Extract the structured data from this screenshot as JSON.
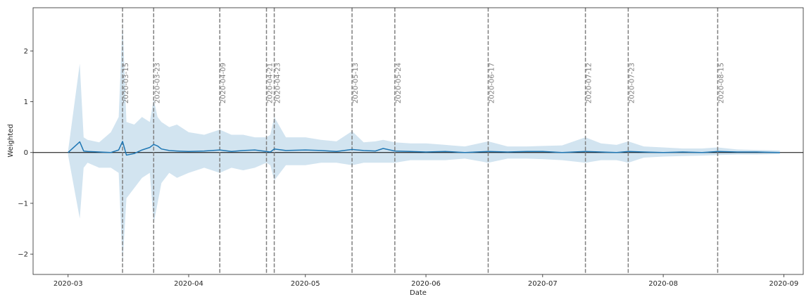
{
  "chart_data": {
    "type": "line",
    "xlabel": "Date",
    "ylabel": "Weighted",
    "x_type": "date",
    "xlim": [
      "2020-02-21",
      "2020-09-06"
    ],
    "ylim": [
      -2.4,
      2.85
    ],
    "x_ticks": [
      "2020-03-01",
      "2020-04-01",
      "2020-05-01",
      "2020-06-01",
      "2020-07-01",
      "2020-08-01",
      "2020-09-01"
    ],
    "x_tick_labels": [
      "2020-03",
      "2020-04",
      "2020-05",
      "2020-06",
      "2020-07",
      "2020-08",
      "2020-09"
    ],
    "y_ticks": [
      -2,
      -1,
      0,
      1,
      2
    ],
    "y_tick_labels": [
      "−2",
      "−1",
      "0",
      "1",
      "2"
    ],
    "grid": false,
    "reference_line_y": 0,
    "event_lines": [
      {
        "date": "2020-03-15",
        "label": "2020-03-15"
      },
      {
        "date": "2020-03-23",
        "label": "2020-03-23"
      },
      {
        "date": "2020-04-09",
        "label": "2020-04-09"
      },
      {
        "date": "2020-04-21",
        "label": "2020-04-21"
      },
      {
        "date": "2020-04-23",
        "label": "2020-04-23"
      },
      {
        "date": "2020-05-13",
        "label": "2020-05-13"
      },
      {
        "date": "2020-05-24",
        "label": "2020-05-24"
      },
      {
        "date": "2020-06-17",
        "label": "2020-06-17"
      },
      {
        "date": "2020-07-12",
        "label": "2020-07-12"
      },
      {
        "date": "2020-07-23",
        "label": "2020-07-23"
      },
      {
        "date": "2020-08-15",
        "label": "2020-08-15"
      }
    ],
    "series": [
      {
        "x": [
          "2020-03-01",
          "2020-03-04",
          "2020-03-05",
          "2020-03-06",
          "2020-03-09",
          "2020-03-12",
          "2020-03-14",
          "2020-03-15",
          "2020-03-16",
          "2020-03-18",
          "2020-03-20",
          "2020-03-22",
          "2020-03-23",
          "2020-03-24",
          "2020-03-25",
          "2020-03-27",
          "2020-03-29",
          "2020-04-01",
          "2020-04-05",
          "2020-04-09",
          "2020-04-12",
          "2020-04-15",
          "2020-04-18",
          "2020-04-21",
          "2020-04-22",
          "2020-04-23",
          "2020-04-26",
          "2020-05-01",
          "2020-05-05",
          "2020-05-09",
          "2020-05-13",
          "2020-05-16",
          "2020-05-19",
          "2020-05-21",
          "2020-05-24",
          "2020-05-28",
          "2020-06-01",
          "2020-06-06",
          "2020-06-11",
          "2020-06-17",
          "2020-06-22",
          "2020-06-27",
          "2020-07-01",
          "2020-07-06",
          "2020-07-12",
          "2020-07-16",
          "2020-07-20",
          "2020-07-23",
          "2020-07-27",
          "2020-08-01",
          "2020-08-06",
          "2020-08-11",
          "2020-08-15",
          "2020-08-20",
          "2020-08-25",
          "2020-08-31"
        ],
        "y": [
          0.0,
          0.21,
          0.03,
          0.02,
          0.01,
          0.0,
          0.05,
          0.22,
          -0.05,
          -0.02,
          0.05,
          0.1,
          0.16,
          0.13,
          0.07,
          0.04,
          0.03,
          0.02,
          0.03,
          0.05,
          0.02,
          0.04,
          0.05,
          0.02,
          0.01,
          0.07,
          0.04,
          0.05,
          0.04,
          0.02,
          0.06,
          0.04,
          0.03,
          0.08,
          0.03,
          0.02,
          0.01,
          0.02,
          0.0,
          0.02,
          0.01,
          0.02,
          0.02,
          0.0,
          0.02,
          0.01,
          0.0,
          0.02,
          0.01,
          0.0,
          0.01,
          0.0,
          0.02,
          0.01,
          0.01,
          0.0
        ],
        "lower": [
          -0.05,
          -1.3,
          -0.3,
          -0.2,
          -0.3,
          -0.3,
          -0.4,
          -2.2,
          -0.9,
          -0.7,
          -0.5,
          -0.4,
          -1.4,
          -1.0,
          -0.6,
          -0.4,
          -0.5,
          -0.4,
          -0.3,
          -0.4,
          -0.3,
          -0.35,
          -0.3,
          -0.2,
          -0.25,
          -0.55,
          -0.25,
          -0.25,
          -0.2,
          -0.2,
          -0.25,
          -0.2,
          -0.2,
          -0.2,
          -0.2,
          -0.15,
          -0.15,
          -0.15,
          -0.12,
          -0.2,
          -0.12,
          -0.12,
          -0.13,
          -0.15,
          -0.2,
          -0.15,
          -0.15,
          -0.2,
          -0.1,
          -0.08,
          -0.07,
          -0.06,
          -0.05,
          -0.04,
          -0.04,
          -0.03
        ],
        "upper": [
          0.03,
          1.75,
          0.3,
          0.25,
          0.2,
          0.4,
          0.7,
          2.6,
          0.6,
          0.55,
          0.7,
          0.6,
          1.05,
          0.7,
          0.6,
          0.5,
          0.55,
          0.4,
          0.35,
          0.45,
          0.35,
          0.35,
          0.3,
          0.3,
          0.35,
          0.7,
          0.3,
          0.3,
          0.25,
          0.22,
          0.42,
          0.2,
          0.22,
          0.25,
          0.2,
          0.18,
          0.18,
          0.15,
          0.12,
          0.22,
          0.12,
          0.12,
          0.13,
          0.14,
          0.3,
          0.18,
          0.15,
          0.22,
          0.12,
          0.1,
          0.08,
          0.08,
          0.1,
          0.06,
          0.05,
          0.04
        ]
      }
    ]
  }
}
